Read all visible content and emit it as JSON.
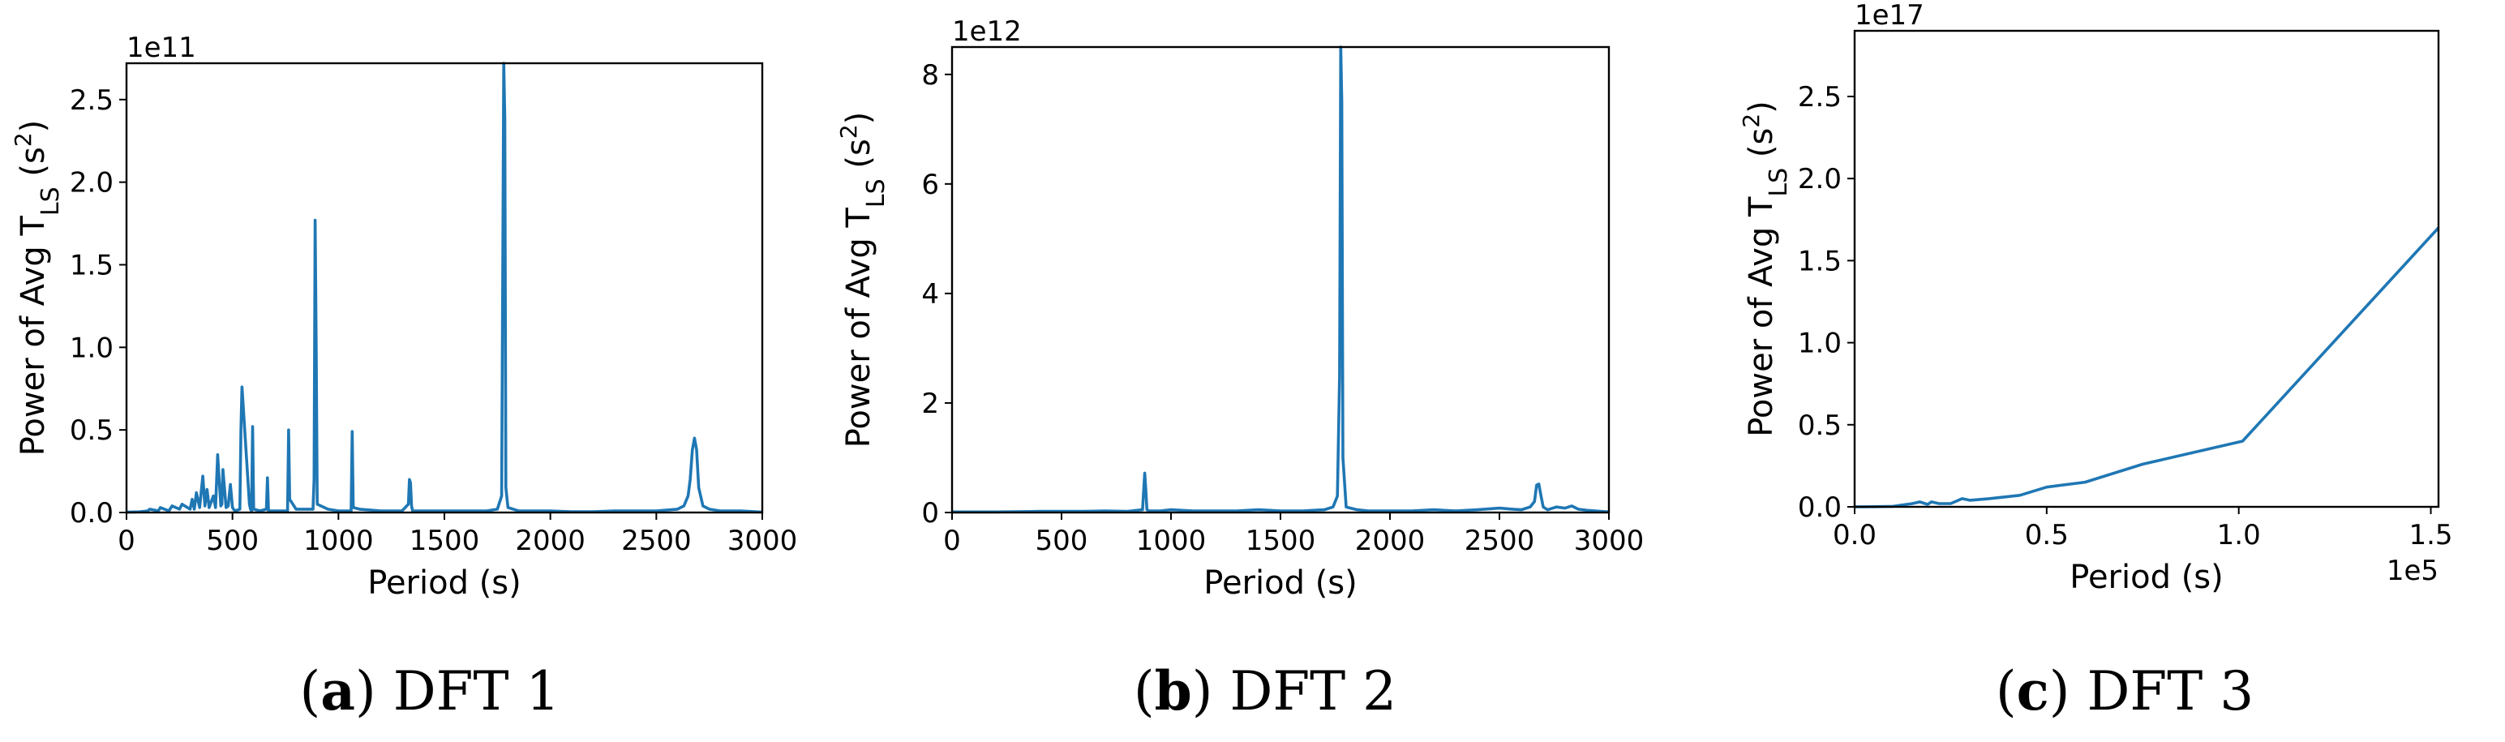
{
  "colors": {
    "series": "#1f77b4"
  },
  "chart_data": [
    {
      "type": "line",
      "caption": {
        "letter": "a",
        "text": " DFT 1"
      },
      "xlabel": "Period (s)",
      "ylabel": "Power of Avg T",
      "ylabel_subscript": "LS",
      "ylabel_unit_pre": " (s",
      "ylabel_unit_sup": "2",
      "ylabel_unit_post": ")",
      "y_offset_label": "1e11",
      "xlim": [
        0,
        3000
      ],
      "ylim": [
        0,
        2.72
      ],
      "xticks": [
        0,
        500,
        1000,
        1500,
        2000,
        2500,
        3000
      ],
      "xtick_labels": [
        "0",
        "500",
        "1000",
        "1500",
        "2000",
        "2500",
        "3000"
      ],
      "yticks": [
        0,
        0.5,
        1.0,
        1.5,
        2.0,
        2.5
      ],
      "ytick_labels": [
        "0.0",
        "0.5",
        "1.0",
        "1.5",
        "2.0",
        "2.5"
      ],
      "grid": false,
      "series": [
        {
          "x": [
            0,
            60,
            100,
            110,
            150,
            160,
            200,
            215,
            250,
            262,
            300,
            310,
            320,
            330,
            345,
            360,
            370,
            380,
            390,
            410,
            420,
            430,
            445,
            450,
            455,
            470,
            480,
            490,
            500,
            505,
            512,
            535,
            540,
            545,
            580,
            585,
            590,
            595,
            600,
            630,
            660,
            665,
            670,
            700,
            760,
            765,
            770,
            800,
            880,
            885,
            890,
            895,
            900,
            950,
            1000,
            1060,
            1065,
            1070,
            1100,
            1200,
            1300,
            1330,
            1335,
            1340,
            1345,
            1350,
            1400,
            1500,
            1600,
            1700,
            1750,
            1770,
            1775,
            1780,
            1785,
            1790,
            1800,
            1850,
            1900,
            2000,
            2100,
            2200,
            2300,
            2400,
            2500,
            2600,
            2630,
            2650,
            2660,
            2670,
            2680,
            2690,
            2700,
            2720,
            2750,
            2800,
            2900,
            3000
          ],
          "y": [
            0.002,
            0.004,
            0.01,
            0.02,
            0.01,
            0.03,
            0.01,
            0.04,
            0.02,
            0.05,
            0.02,
            0.08,
            0.02,
            0.12,
            0.03,
            0.22,
            0.04,
            0.14,
            0.03,
            0.1,
            0.03,
            0.35,
            0.04,
            0.05,
            0.26,
            0.03,
            0.04,
            0.17,
            0.03,
            0.02,
            0.01,
            0.02,
            0.5,
            0.76,
            0.05,
            0.02,
            0.01,
            0.52,
            0.02,
            0.01,
            0.02,
            0.21,
            0.01,
            0.01,
            0.01,
            0.5,
            0.08,
            0.02,
            0.02,
            0.2,
            1.77,
            1.0,
            0.05,
            0.02,
            0.01,
            0.01,
            0.49,
            0.03,
            0.02,
            0.01,
            0.01,
            0.05,
            0.2,
            0.18,
            0.04,
            0.01,
            0.01,
            0.01,
            0.01,
            0.01,
            0.02,
            0.1,
            1.4,
            2.72,
            2.38,
            0.15,
            0.03,
            0.01,
            0.01,
            0.01,
            0.005,
            0.005,
            0.01,
            0.01,
            0.01,
            0.02,
            0.04,
            0.1,
            0.2,
            0.38,
            0.45,
            0.38,
            0.15,
            0.04,
            0.02,
            0.01,
            0.01,
            0.002
          ]
        }
      ]
    },
    {
      "type": "line",
      "caption": {
        "letter": "b",
        "text": " DFT 2"
      },
      "xlabel": "Period (s)",
      "ylabel": "Power of Avg T",
      "ylabel_subscript": "LS",
      "ylabel_unit_pre": " (s",
      "ylabel_unit_sup": "2",
      "ylabel_unit_post": ")",
      "y_offset_label": "1e12",
      "xlim": [
        0,
        3000
      ],
      "ylim": [
        0,
        8.5
      ],
      "xticks": [
        0,
        500,
        1000,
        1500,
        2000,
        2500,
        3000
      ],
      "xtick_labels": [
        "0",
        "500",
        "1000",
        "1500",
        "2000",
        "2500",
        "3000"
      ],
      "yticks": [
        0,
        2,
        4,
        6,
        8
      ],
      "ytick_labels": [
        "0",
        "2",
        "4",
        "6",
        "8"
      ],
      "grid": false,
      "series": [
        {
          "x": [
            0,
            200,
            400,
            600,
            700,
            800,
            870,
            880,
            885,
            890,
            900,
            950,
            1000,
            1100,
            1200,
            1300,
            1400,
            1500,
            1600,
            1700,
            1740,
            1760,
            1770,
            1775,
            1780,
            1785,
            1800,
            1850,
            1900,
            2000,
            2100,
            2200,
            2300,
            2400,
            2500,
            2560,
            2600,
            2640,
            2660,
            2670,
            2680,
            2690,
            2700,
            2720,
            2760,
            2800,
            2830,
            2860,
            2900,
            3000
          ],
          "y": [
            0.01,
            0.01,
            0.02,
            0.02,
            0.03,
            0.02,
            0.05,
            0.72,
            0.4,
            0.05,
            0.03,
            0.03,
            0.05,
            0.03,
            0.03,
            0.03,
            0.05,
            0.03,
            0.03,
            0.05,
            0.1,
            0.3,
            2.5,
            8.5,
            7.5,
            1.0,
            0.1,
            0.05,
            0.03,
            0.03,
            0.03,
            0.05,
            0.03,
            0.05,
            0.08,
            0.06,
            0.05,
            0.1,
            0.2,
            0.5,
            0.52,
            0.3,
            0.1,
            0.05,
            0.1,
            0.08,
            0.12,
            0.06,
            0.04,
            0.01
          ]
        }
      ]
    },
    {
      "type": "line",
      "caption": {
        "letter": "c",
        "text": " DFT 3"
      },
      "xlabel": "Period (s)",
      "ylabel": "Power of Avg T",
      "ylabel_subscript": "LS",
      "ylabel_unit_pre": " (s",
      "ylabel_unit_sup": "2",
      "ylabel_unit_post": ")",
      "y_offset_label": "1e17",
      "x_offset_label": "1e5",
      "xlim": [
        0,
        1.52
      ],
      "ylim": [
        0,
        2.9
      ],
      "xticks": [
        0,
        0.5,
        1.0,
        1.5
      ],
      "xtick_labels": [
        "0.0",
        "0.5",
        "1.0",
        "1.5"
      ],
      "yticks": [
        0,
        0.5,
        1.0,
        1.5,
        2.0,
        2.5
      ],
      "ytick_labels": [
        "0.0",
        "0.5",
        "1.0",
        "1.5",
        "2.0",
        "2.5"
      ],
      "grid": false,
      "series": [
        {
          "x": [
            0,
            0.05,
            0.1,
            0.12,
            0.15,
            0.17,
            0.19,
            0.2,
            0.22,
            0.25,
            0.28,
            0.3,
            0.35,
            0.43,
            0.5,
            0.6,
            0.75,
            1.01,
            1.52
          ],
          "y": [
            0.0,
            0.001,
            0.003,
            0.01,
            0.02,
            0.03,
            0.015,
            0.03,
            0.02,
            0.02,
            0.05,
            0.04,
            0.05,
            0.07,
            0.12,
            0.15,
            0.26,
            0.4,
            1.7
          ]
        }
      ]
    }
  ]
}
